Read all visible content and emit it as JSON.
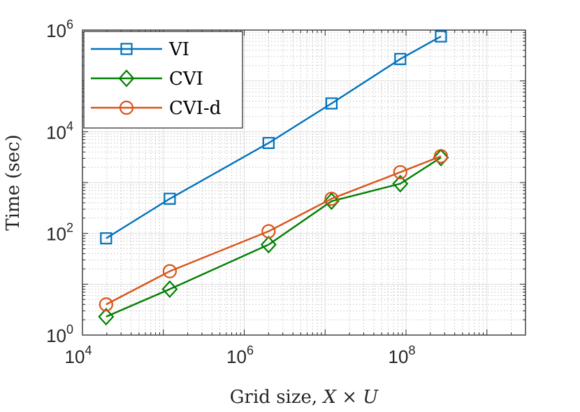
{
  "chart_data": {
    "type": "line",
    "xscale": "log",
    "yscale": "log",
    "xlim": [
      10000,
      3000000000
    ],
    "ylim": [
      1,
      1000000
    ],
    "xlabel": "Grid size, X × U",
    "xlabel_prefix": "Grid size, ",
    "xlabel_math": "X × U",
    "ylabel": "Time (sec)",
    "x_ticks": [
      {
        "value": 10000,
        "base": "10",
        "exp": "4"
      },
      {
        "value": 1000000,
        "base": "10",
        "exp": "6"
      },
      {
        "value": 100000000,
        "base": "10",
        "exp": "8"
      }
    ],
    "y_ticks": [
      {
        "value": 1,
        "base": "10",
        "exp": "0"
      },
      {
        "value": 100,
        "base": "10",
        "exp": "2"
      },
      {
        "value": 10000,
        "base": "10",
        "exp": "4"
      },
      {
        "value": 1000000,
        "base": "10",
        "exp": "6"
      }
    ],
    "grid": true,
    "minor_grid": true,
    "legend_position": "top-left",
    "series": [
      {
        "name": "VI",
        "color": "#0072BD",
        "marker": "square",
        "x": [
          19600,
          120000,
          2000000,
          12000000,
          85000000,
          270000000
        ],
        "y": [
          80,
          480,
          6000,
          36000,
          270000,
          750000
        ]
      },
      {
        "name": "CVI",
        "color": "#007F00",
        "marker": "diamond",
        "x": [
          19600,
          120000,
          2000000,
          12000000,
          85000000,
          270000000
        ],
        "y": [
          2.3,
          8,
          60,
          430,
          950,
          3100
        ]
      },
      {
        "name": "CVI-d",
        "color": "#D95319",
        "marker": "circle",
        "x": [
          19600,
          120000,
          2000000,
          12000000,
          85000000,
          270000000
        ],
        "y": [
          4,
          18,
          110,
          480,
          1600,
          3300
        ]
      }
    ]
  }
}
